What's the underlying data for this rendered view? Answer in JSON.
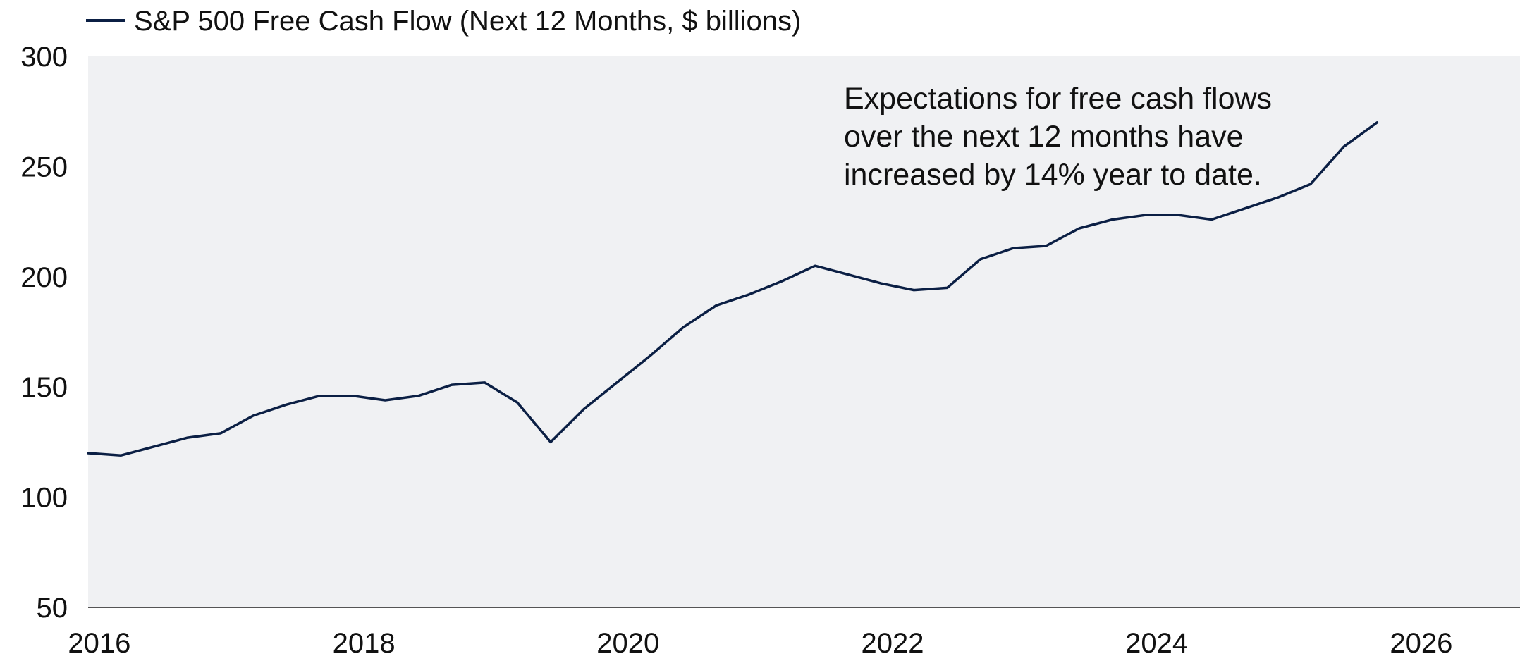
{
  "chart_data": {
    "type": "line",
    "title": "",
    "xlabel": "",
    "ylabel": "",
    "legend_position": "top-left",
    "grid": false,
    "ylim": [
      50,
      300
    ],
    "xlim": [
      "2015-12-01",
      "2026-10-01"
    ],
    "y_ticks": [
      "300",
      "250",
      "200",
      "150",
      "100",
      "50"
    ],
    "x_ticks": [
      "2016",
      "2018",
      "2020",
      "2022",
      "2024",
      "2026"
    ],
    "annotation": [
      "Expectations for free cash flows",
      "over the next 12 months have",
      "increased by 14% year to date."
    ],
    "colors": {
      "line": "#0b1f44",
      "plot_background": "#f0f1f3",
      "baseline": "#555555"
    },
    "series": [
      {
        "name": "S&P 500 Free Cash Flow (Next 12 Months, $ billions)",
        "x": [
          "2015-12-01",
          "2016-03-01",
          "2016-06-01",
          "2016-09-01",
          "2016-12-01",
          "2017-03-01",
          "2017-06-01",
          "2017-09-01",
          "2017-12-01",
          "2018-03-01",
          "2018-06-01",
          "2018-09-01",
          "2018-12-01",
          "2019-03-01",
          "2019-06-01",
          "2019-09-01",
          "2019-12-01",
          "2020-03-01",
          "2020-06-01",
          "2020-09-01",
          "2020-12-01",
          "2021-03-01",
          "2021-06-01",
          "2021-09-01",
          "2021-12-01",
          "2022-03-01",
          "2022-06-01",
          "2022-09-01",
          "2022-12-01",
          "2023-03-01",
          "2023-06-01",
          "2023-09-01",
          "2023-12-01",
          "2024-03-01",
          "2024-06-01",
          "2024-09-01",
          "2024-12-01",
          "2025-03-01",
          "2025-06-01",
          "2025-09-01",
          "2025-12-01",
          "2026-03-01",
          "2026-06-01"
        ],
        "y": [
          120,
          119,
          123,
          127,
          129,
          137,
          142,
          146,
          146,
          144,
          146,
          151,
          152,
          143,
          125,
          140,
          152,
          164,
          177,
          187,
          192,
          198,
          205,
          201,
          197,
          194,
          195,
          208,
          213,
          214,
          222,
          226,
          228,
          228,
          226,
          231,
          236,
          242,
          259,
          270,
          null,
          null,
          null
        ]
      }
    ]
  }
}
